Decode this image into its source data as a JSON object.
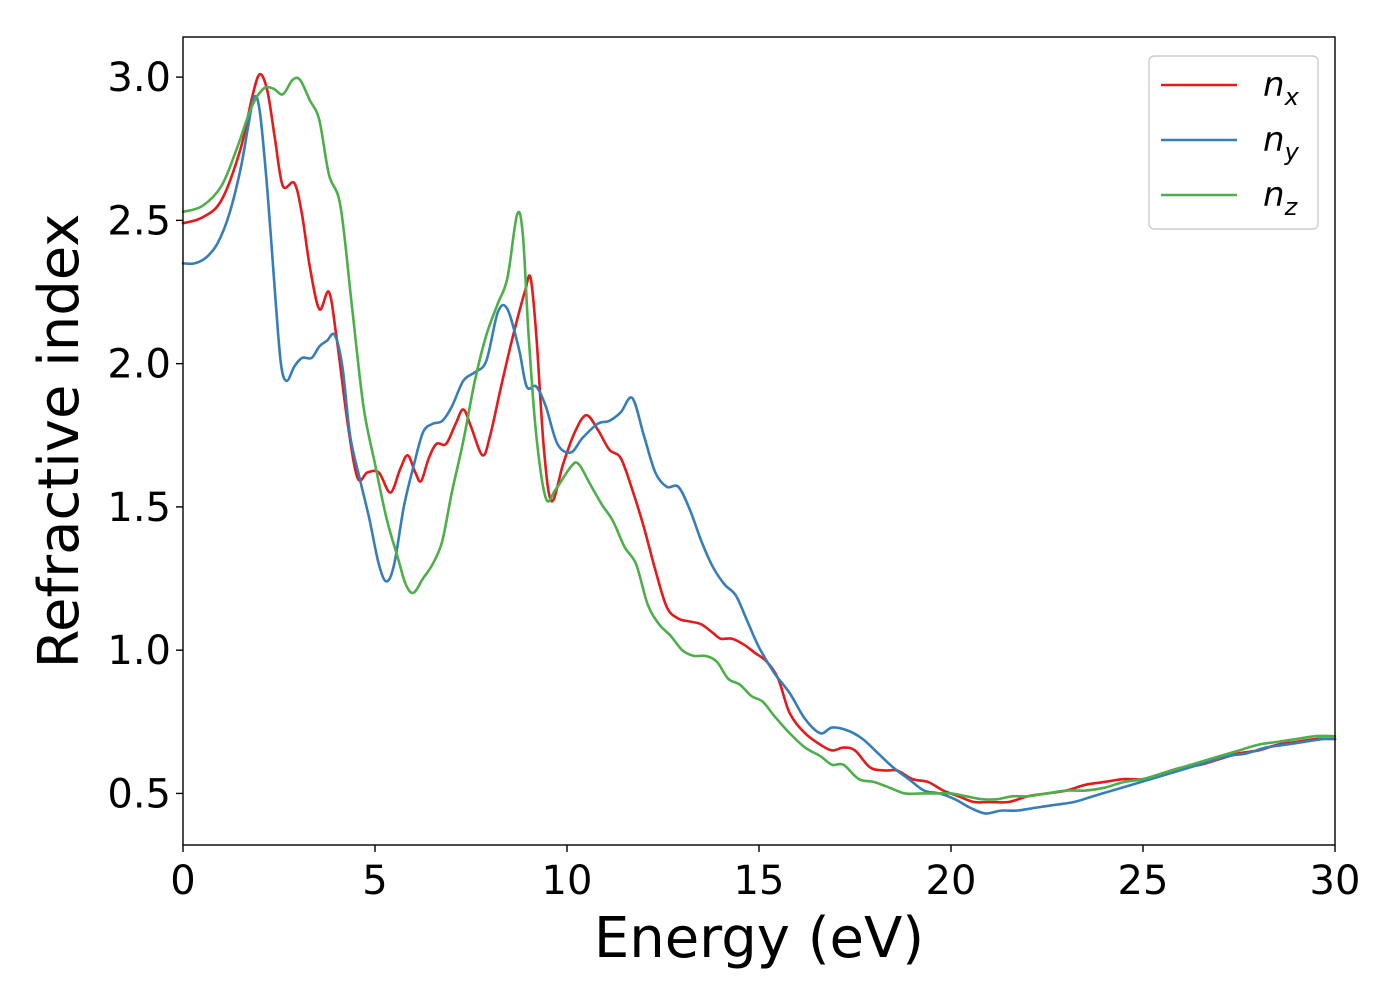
{
  "chart_data": {
    "type": "line",
    "xlabel": "Energy (eV)",
    "ylabel": "Refractive index",
    "xlim": [
      0,
      30
    ],
    "ylim": [
      0.32,
      3.14
    ],
    "xticks": [
      0,
      5,
      10,
      15,
      20,
      25,
      30
    ],
    "xtick_labels": [
      "0",
      "5",
      "10",
      "15",
      "20",
      "25",
      "30"
    ],
    "yticks": [
      0.5,
      1.0,
      1.5,
      2.0,
      2.5,
      3.0
    ],
    "ytick_labels": [
      "0.5",
      "1.0",
      "1.5",
      "2.0",
      "2.5",
      "3.0"
    ],
    "grid": false,
    "legend": {
      "position": "top-right"
    },
    "series": [
      {
        "name": "n",
        "subscript": "x",
        "color": "#e41a1c",
        "points": [
          [
            0,
            2.49
          ],
          [
            0.5,
            2.51
          ],
          [
            1.0,
            2.57
          ],
          [
            1.5,
            2.75
          ],
          [
            1.8,
            2.93
          ],
          [
            2.0,
            3.01
          ],
          [
            2.2,
            2.95
          ],
          [
            2.4,
            2.78
          ],
          [
            2.6,
            2.62
          ],
          [
            2.9,
            2.63
          ],
          [
            3.1,
            2.52
          ],
          [
            3.3,
            2.34
          ],
          [
            3.55,
            2.19
          ],
          [
            3.8,
            2.25
          ],
          [
            4.0,
            2.09
          ],
          [
            4.3,
            1.78
          ],
          [
            4.55,
            1.6
          ],
          [
            4.8,
            1.62
          ],
          [
            5.1,
            1.62
          ],
          [
            5.4,
            1.55
          ],
          [
            5.65,
            1.63
          ],
          [
            5.85,
            1.68
          ],
          [
            6.05,
            1.62
          ],
          [
            6.2,
            1.59
          ],
          [
            6.4,
            1.67
          ],
          [
            6.6,
            1.72
          ],
          [
            6.85,
            1.72
          ],
          [
            7.1,
            1.79
          ],
          [
            7.3,
            1.84
          ],
          [
            7.5,
            1.78
          ],
          [
            7.8,
            1.68
          ],
          [
            8.0,
            1.75
          ],
          [
            8.3,
            1.93
          ],
          [
            8.6,
            2.1
          ],
          [
            8.9,
            2.25
          ],
          [
            9.05,
            2.3
          ],
          [
            9.2,
            2.1
          ],
          [
            9.4,
            1.7
          ],
          [
            9.6,
            1.52
          ],
          [
            9.9,
            1.65
          ],
          [
            10.2,
            1.76
          ],
          [
            10.5,
            1.82
          ],
          [
            10.8,
            1.77
          ],
          [
            11.1,
            1.7
          ],
          [
            11.4,
            1.67
          ],
          [
            11.7,
            1.56
          ],
          [
            12.0,
            1.43
          ],
          [
            12.3,
            1.28
          ],
          [
            12.6,
            1.15
          ],
          [
            12.9,
            1.11
          ],
          [
            13.2,
            1.1
          ],
          [
            13.5,
            1.09
          ],
          [
            13.8,
            1.06
          ],
          [
            14.0,
            1.04
          ],
          [
            14.3,
            1.04
          ],
          [
            14.6,
            1.02
          ],
          [
            14.9,
            0.99
          ],
          [
            15.2,
            0.96
          ],
          [
            15.5,
            0.9
          ],
          [
            15.8,
            0.78
          ],
          [
            16.2,
            0.71
          ],
          [
            16.6,
            0.67
          ],
          [
            16.9,
            0.65
          ],
          [
            17.2,
            0.66
          ],
          [
            17.5,
            0.65
          ],
          [
            17.9,
            0.59
          ],
          [
            18.3,
            0.58
          ],
          [
            18.6,
            0.58
          ],
          [
            19.0,
            0.55
          ],
          [
            19.4,
            0.54
          ],
          [
            19.8,
            0.51
          ],
          [
            20.2,
            0.49
          ],
          [
            20.6,
            0.47
          ],
          [
            21.0,
            0.47
          ],
          [
            21.5,
            0.47
          ],
          [
            22.0,
            0.49
          ],
          [
            22.5,
            0.5
          ],
          [
            23.0,
            0.51
          ],
          [
            23.5,
            0.53
          ],
          [
            24.0,
            0.54
          ],
          [
            24.5,
            0.55
          ],
          [
            25.0,
            0.55
          ],
          [
            25.5,
            0.57
          ],
          [
            26.0,
            0.59
          ],
          [
            26.5,
            0.6
          ],
          [
            27.0,
            0.62
          ],
          [
            27.5,
            0.64
          ],
          [
            28.0,
            0.65
          ],
          [
            28.5,
            0.67
          ],
          [
            29.0,
            0.68
          ],
          [
            29.5,
            0.69
          ],
          [
            30.0,
            0.69
          ]
        ]
      },
      {
        "name": "n",
        "subscript": "y",
        "color": "#377eb8",
        "points": [
          [
            0,
            2.35
          ],
          [
            0.3,
            2.35
          ],
          [
            0.6,
            2.37
          ],
          [
            0.9,
            2.42
          ],
          [
            1.2,
            2.52
          ],
          [
            1.5,
            2.68
          ],
          [
            1.7,
            2.83
          ],
          [
            1.85,
            2.93
          ],
          [
            2.0,
            2.88
          ],
          [
            2.2,
            2.6
          ],
          [
            2.4,
            2.24
          ],
          [
            2.55,
            2.0
          ],
          [
            2.7,
            1.94
          ],
          [
            2.9,
            1.99
          ],
          [
            3.1,
            2.02
          ],
          [
            3.35,
            2.02
          ],
          [
            3.55,
            2.06
          ],
          [
            3.75,
            2.08
          ],
          [
            3.95,
            2.1
          ],
          [
            4.15,
            1.99
          ],
          [
            4.35,
            1.75
          ],
          [
            4.6,
            1.6
          ],
          [
            4.85,
            1.46
          ],
          [
            5.1,
            1.3
          ],
          [
            5.3,
            1.24
          ],
          [
            5.5,
            1.3
          ],
          [
            5.75,
            1.5
          ],
          [
            6.0,
            1.64
          ],
          [
            6.25,
            1.76
          ],
          [
            6.5,
            1.79
          ],
          [
            6.75,
            1.8
          ],
          [
            7.0,
            1.85
          ],
          [
            7.3,
            1.94
          ],
          [
            7.6,
            1.97
          ],
          [
            7.9,
            2.01
          ],
          [
            8.2,
            2.18
          ],
          [
            8.45,
            2.19
          ],
          [
            8.75,
            2.05
          ],
          [
            8.95,
            1.92
          ],
          [
            9.2,
            1.92
          ],
          [
            9.45,
            1.85
          ],
          [
            9.75,
            1.72
          ],
          [
            10.1,
            1.69
          ],
          [
            10.4,
            1.74
          ],
          [
            10.8,
            1.79
          ],
          [
            11.1,
            1.8
          ],
          [
            11.4,
            1.83
          ],
          [
            11.7,
            1.88
          ],
          [
            12.0,
            1.75
          ],
          [
            12.3,
            1.62
          ],
          [
            12.6,
            1.57
          ],
          [
            12.9,
            1.57
          ],
          [
            13.2,
            1.49
          ],
          [
            13.5,
            1.38
          ],
          [
            13.8,
            1.29
          ],
          [
            14.1,
            1.23
          ],
          [
            14.4,
            1.19
          ],
          [
            14.7,
            1.1
          ],
          [
            15.0,
            1.01
          ],
          [
            15.4,
            0.92
          ],
          [
            15.8,
            0.85
          ],
          [
            16.2,
            0.76
          ],
          [
            16.6,
            0.71
          ],
          [
            16.9,
            0.73
          ],
          [
            17.3,
            0.72
          ],
          [
            17.7,
            0.69
          ],
          [
            18.1,
            0.64
          ],
          [
            18.5,
            0.59
          ],
          [
            18.9,
            0.55
          ],
          [
            19.3,
            0.51
          ],
          [
            19.7,
            0.5
          ],
          [
            20.1,
            0.48
          ],
          [
            20.5,
            0.45
          ],
          [
            20.9,
            0.43
          ],
          [
            21.3,
            0.44
          ],
          [
            21.7,
            0.44
          ],
          [
            22.2,
            0.45
          ],
          [
            22.7,
            0.46
          ],
          [
            23.2,
            0.47
          ],
          [
            23.7,
            0.49
          ],
          [
            24.2,
            0.51
          ],
          [
            24.7,
            0.53
          ],
          [
            25.2,
            0.55
          ],
          [
            25.7,
            0.57
          ],
          [
            26.2,
            0.59
          ],
          [
            26.7,
            0.61
          ],
          [
            27.2,
            0.63
          ],
          [
            27.7,
            0.64
          ],
          [
            28.2,
            0.66
          ],
          [
            28.7,
            0.67
          ],
          [
            29.2,
            0.68
          ],
          [
            29.7,
            0.69
          ],
          [
            30.0,
            0.69
          ]
        ]
      },
      {
        "name": "n",
        "subscript": "z",
        "color": "#4daf4a",
        "points": [
          [
            0,
            2.53
          ],
          [
            0.5,
            2.55
          ],
          [
            1.0,
            2.62
          ],
          [
            1.4,
            2.75
          ],
          [
            1.8,
            2.9
          ],
          [
            2.1,
            2.96
          ],
          [
            2.35,
            2.96
          ],
          [
            2.6,
            2.94
          ],
          [
            2.85,
            2.99
          ],
          [
            3.05,
            2.99
          ],
          [
            3.3,
            2.92
          ],
          [
            3.55,
            2.85
          ],
          [
            3.8,
            2.66
          ],
          [
            4.1,
            2.55
          ],
          [
            4.4,
            2.2
          ],
          [
            4.7,
            1.85
          ],
          [
            5.0,
            1.65
          ],
          [
            5.3,
            1.46
          ],
          [
            5.6,
            1.32
          ],
          [
            5.8,
            1.23
          ],
          [
            6.0,
            1.2
          ],
          [
            6.25,
            1.25
          ],
          [
            6.5,
            1.3
          ],
          [
            6.75,
            1.38
          ],
          [
            7.0,
            1.55
          ],
          [
            7.3,
            1.73
          ],
          [
            7.6,
            1.94
          ],
          [
            7.9,
            2.1
          ],
          [
            8.2,
            2.21
          ],
          [
            8.45,
            2.3
          ],
          [
            8.7,
            2.52
          ],
          [
            8.85,
            2.45
          ],
          [
            9.0,
            2.1
          ],
          [
            9.2,
            1.75
          ],
          [
            9.45,
            1.53
          ],
          [
            9.7,
            1.56
          ],
          [
            10.1,
            1.64
          ],
          [
            10.3,
            1.65
          ],
          [
            10.6,
            1.58
          ],
          [
            10.9,
            1.51
          ],
          [
            11.2,
            1.45
          ],
          [
            11.5,
            1.36
          ],
          [
            11.8,
            1.3
          ],
          [
            12.1,
            1.16
          ],
          [
            12.4,
            1.09
          ],
          [
            12.7,
            1.05
          ],
          [
            13.0,
            1.0
          ],
          [
            13.3,
            0.98
          ],
          [
            13.6,
            0.98
          ],
          [
            13.9,
            0.96
          ],
          [
            14.2,
            0.9
          ],
          [
            14.5,
            0.88
          ],
          [
            14.8,
            0.84
          ],
          [
            15.1,
            0.82
          ],
          [
            15.4,
            0.77
          ],
          [
            15.8,
            0.71
          ],
          [
            16.2,
            0.66
          ],
          [
            16.6,
            0.63
          ],
          [
            16.9,
            0.6
          ],
          [
            17.2,
            0.6
          ],
          [
            17.6,
            0.55
          ],
          [
            18.0,
            0.54
          ],
          [
            18.4,
            0.52
          ],
          [
            18.8,
            0.5
          ],
          [
            19.2,
            0.5
          ],
          [
            19.6,
            0.5
          ],
          [
            20.0,
            0.5
          ],
          [
            20.4,
            0.49
          ],
          [
            20.8,
            0.48
          ],
          [
            21.2,
            0.48
          ],
          [
            21.6,
            0.49
          ],
          [
            22.0,
            0.49
          ],
          [
            22.5,
            0.5
          ],
          [
            23.0,
            0.51
          ],
          [
            23.5,
            0.51
          ],
          [
            24.0,
            0.52
          ],
          [
            24.5,
            0.54
          ],
          [
            25.0,
            0.55
          ],
          [
            25.5,
            0.57
          ],
          [
            26.0,
            0.59
          ],
          [
            26.5,
            0.61
          ],
          [
            27.0,
            0.63
          ],
          [
            27.5,
            0.65
          ],
          [
            28.0,
            0.67
          ],
          [
            28.5,
            0.68
          ],
          [
            29.0,
            0.69
          ],
          [
            29.5,
            0.7
          ],
          [
            30.0,
            0.7
          ]
        ]
      }
    ]
  }
}
